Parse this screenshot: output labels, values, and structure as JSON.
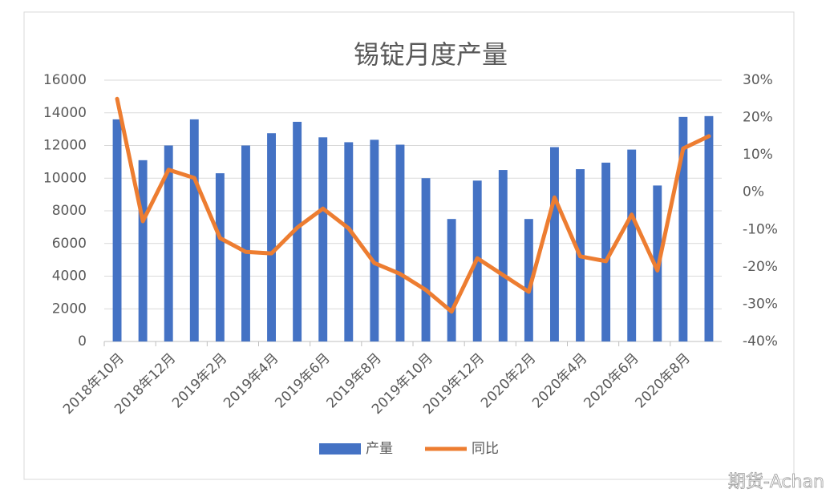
{
  "chart_data": {
    "type": "bar-line",
    "title": "锡锭月度产量",
    "categories": [
      "2018年10月",
      null,
      "2018年12月",
      null,
      "2019年2月",
      null,
      "2019年4月",
      null,
      "2019年6月",
      null,
      "2019年8月",
      null,
      "2019年10月",
      null,
      "2019年12月",
      null,
      "2020年2月",
      null,
      "2020年4月",
      null,
      "2020年6月",
      null,
      "2020年8月",
      null
    ],
    "series": [
      {
        "name": "产量",
        "type": "bar",
        "color": "#4472c4",
        "values": [
          13600,
          11100,
          12000,
          13600,
          10300,
          12000,
          12750,
          13450,
          12500,
          12200,
          12350,
          12050,
          10000,
          7500,
          9850,
          10500,
          7500,
          11900,
          10550,
          10950,
          11750,
          9550,
          13750,
          13800
        ]
      },
      {
        "name": "同比",
        "type": "line",
        "axis": "y2",
        "color": "#ed7d31",
        "values": [
          25,
          -7.8,
          6,
          3.8,
          -12.3,
          -16,
          -16.4,
          -9.5,
          -4.4,
          -9.7,
          -19,
          -21.9,
          -26.2,
          -32,
          -17.7,
          -22.2,
          -26.7,
          -1.4,
          -17.2,
          -18.5,
          -6,
          -21,
          11.7,
          15
        ]
      }
    ],
    "ylim": [
      0,
      16000
    ],
    "yticks": [
      0,
      2000,
      4000,
      6000,
      8000,
      10000,
      12000,
      14000,
      16000
    ],
    "y2lim": [
      -40,
      30
    ],
    "y2ticks": [
      {
        "value": -40,
        "label": "-40%"
      },
      {
        "value": -30,
        "label": "-30%"
      },
      {
        "value": -20,
        "label": "-20%"
      },
      {
        "value": -10,
        "label": "-10%"
      },
      {
        "value": 0,
        "label": "0%"
      },
      {
        "value": 10,
        "label": "10%"
      },
      {
        "value": 20,
        "label": "20%"
      },
      {
        "value": 30,
        "label": "30%"
      }
    ],
    "grid": true
  },
  "watermark": "期货-Achan"
}
